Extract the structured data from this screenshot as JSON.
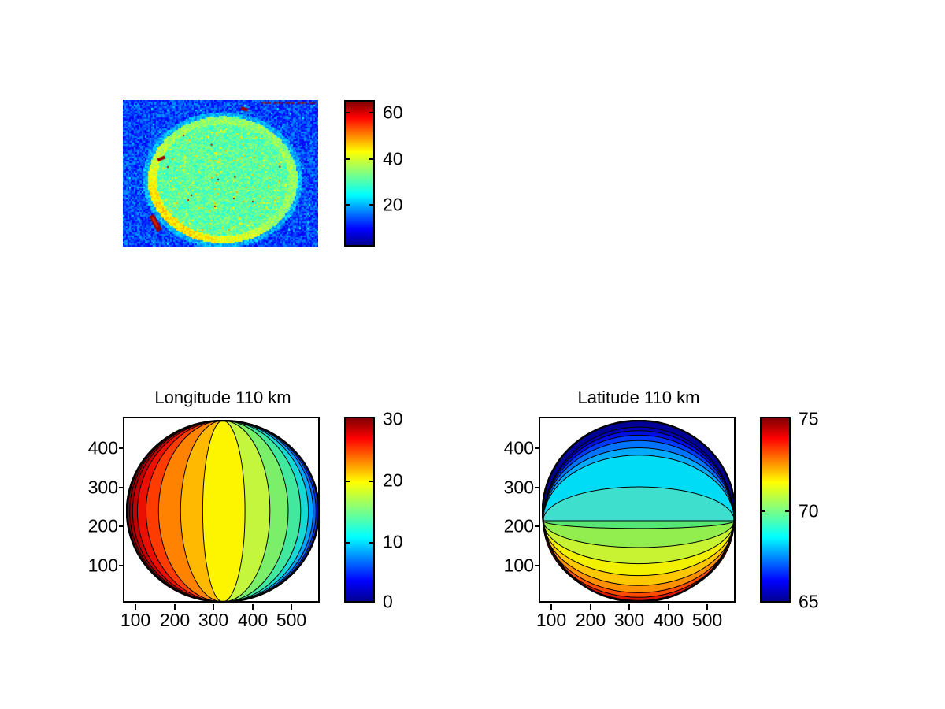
{
  "figure": {
    "background": "#ffffff",
    "accent_colormap": "jet"
  },
  "chart_data": [
    {
      "type": "heatmap",
      "panel": "allsky-image",
      "title": "",
      "colormap": "jet",
      "clim": [
        0,
        64
      ],
      "colorbar_ticks": [
        20,
        40,
        60
      ],
      "content": "noisy all-sky camera frame: circular field-of-view disk (mean value ~30, teal-green with yellow rim) on blue background (mean ~14), saturated dark-red specks near value 60-64",
      "disk": {
        "center_frac": [
          0.508,
          0.54
        ],
        "radius_frac": [
          0.383,
          0.433
        ],
        "mean_value": 30,
        "rim_value": 40
      },
      "background_mean_value": 14
    },
    {
      "type": "contour",
      "panel": "longitude-contour",
      "title": "Longitude 110 km",
      "x_ticks": [
        100,
        200,
        300,
        400,
        500
      ],
      "y_ticks": [
        100,
        200,
        300,
        400
      ],
      "x_range": [
        65,
        578
      ],
      "y_range": [
        1,
        477
      ],
      "colormap": "jet",
      "clim": [
        0,
        30
      ],
      "colorbar_ticks": [
        0,
        10,
        20,
        30
      ],
      "pattern": "meridian-like filled contour bands on circular disk; value ~30 (dark red) at left limb decreasing to ~0 (dark blue) at right limb; wide yellow band (~17) at center; contours converge at top and bottom poles",
      "render": {
        "base_color": "#fdf400",
        "left_bands": [
          {
            "f": 0.21,
            "color": "#ffb900"
          },
          {
            "f": 0.44,
            "color": "#ff8200"
          },
          {
            "f": 0.67,
            "color": "#ff3c00"
          },
          {
            "f": 0.8,
            "color": "#eb0f00"
          },
          {
            "f": 0.89,
            "color": "#c30000"
          },
          {
            "f": 0.94,
            "color": "#a00000"
          },
          {
            "f": 0.97,
            "color": "#870000"
          },
          {
            "f": 0.99,
            "color": "#730000"
          }
        ],
        "right_bands": [
          {
            "f": 0.23,
            "color": "#c3f63c"
          },
          {
            "f": 0.49,
            "color": "#7bef69"
          },
          {
            "f": 0.68,
            "color": "#41e89e"
          },
          {
            "f": 0.81,
            "color": "#16d9d4"
          },
          {
            "f": 0.89,
            "color": "#00a5ff"
          },
          {
            "f": 0.94,
            "color": "#0069ff"
          },
          {
            "f": 0.97,
            "color": "#0032f5"
          },
          {
            "f": 0.99,
            "color": "#0000c3"
          }
        ]
      }
    },
    {
      "type": "contour",
      "panel": "latitude-contour",
      "title": "Latitude 110 km",
      "x_ticks": [
        100,
        200,
        300,
        400,
        500
      ],
      "y_ticks": [
        100,
        200,
        300,
        400
      ],
      "x_range": [
        65,
        578
      ],
      "y_range": [
        1,
        477
      ],
      "colormap": "jet",
      "clim": [
        65,
        75
      ],
      "colorbar_ticks": [
        65,
        70,
        75
      ],
      "pattern": "parallel-like filled contour bands on circular disk; value ~65 (dark blue) at top limb increasing to ~75 (dark red) at bottom limb; wide cyan/teal bands around a nearly flat contour slightly below disk center; contours converge at left and right limb points",
      "render": {
        "base_color": "#55e673",
        "equator_offset_frac": 0.104,
        "top_bands": [
          {
            "f": 0.0,
            "color": "#3ee0cd"
          },
          {
            "f": 0.27,
            "color": "#00dcf5"
          },
          {
            "f": 0.62,
            "color": "#00aaff"
          },
          {
            "f": 0.7,
            "color": "#0073ff"
          },
          {
            "f": 0.78,
            "color": "#0039ff"
          },
          {
            "f": 0.84,
            "color": "#000fe1"
          },
          {
            "f": 0.89,
            "color": "#0000b4"
          },
          {
            "f": 0.93,
            "color": "#000096"
          }
        ],
        "bottom_bands": [
          {
            "f": 0.19,
            "color": "#91ee4e"
          },
          {
            "f": 0.4,
            "color": "#c8f332"
          },
          {
            "f": 0.58,
            "color": "#f2f200"
          },
          {
            "f": 0.71,
            "color": "#ffc800"
          },
          {
            "f": 0.82,
            "color": "#ff9100"
          },
          {
            "f": 0.9,
            "color": "#ff4b00"
          },
          {
            "f": 0.95,
            "color": "#dc1400"
          },
          {
            "f": 0.985,
            "color": "#960000"
          }
        ]
      }
    }
  ]
}
